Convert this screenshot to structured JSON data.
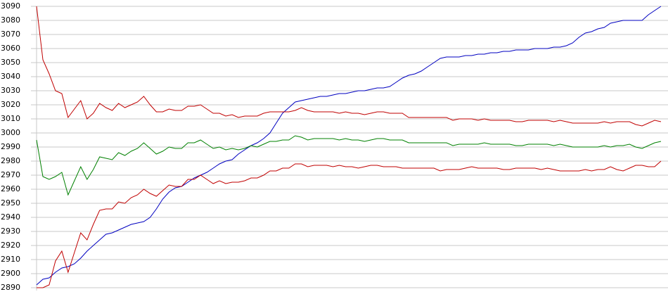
{
  "chart_data": {
    "type": "line",
    "ylim": [
      2890,
      3090
    ],
    "yticks": [
      2890,
      2900,
      2910,
      2920,
      2930,
      2940,
      2950,
      2960,
      2970,
      2980,
      2990,
      3000,
      3010,
      3020,
      3030,
      3040,
      3050,
      3060,
      3070,
      3080,
      3090
    ],
    "grid": true,
    "series": [
      {
        "color": "#0000c0",
        "values": [
          2892,
          2896,
          2897,
          2901,
          2904,
          2905,
          2907,
          2911,
          2916,
          2920,
          2924,
          2928,
          2929,
          2931,
          2933,
          2935,
          2936,
          2937,
          2940,
          2946,
          2953,
          2958,
          2961,
          2962,
          2965,
          2968,
          2970,
          2972,
          2975,
          2978,
          2980,
          2981,
          2985,
          2988,
          2991,
          2993,
          2996,
          3000,
          3007,
          3014,
          3018,
          3022,
          3023,
          3024,
          3025,
          3026,
          3026,
          3027,
          3028,
          3028,
          3029,
          3030,
          3030,
          3031,
          3032,
          3032,
          3033,
          3036,
          3039,
          3041,
          3042,
          3044,
          3047,
          3050,
          3053,
          3054,
          3054,
          3054,
          3055,
          3055,
          3056,
          3056,
          3057,
          3057,
          3058,
          3058,
          3059,
          3059,
          3059,
          3060,
          3060,
          3060,
          3061,
          3061,
          3062,
          3064,
          3068,
          3071,
          3072,
          3074,
          3075,
          3078,
          3079,
          3080,
          3080,
          3080,
          3080,
          3084,
          3087,
          3090
        ]
      },
      {
        "color": "#c00000",
        "values": [
          3090,
          3052,
          3042,
          3030,
          3028,
          3011,
          3017,
          3023,
          3010,
          3014,
          3021,
          3018,
          3016,
          3021,
          3018,
          3020,
          3022,
          3026,
          3020,
          3015,
          3015,
          3017,
          3016,
          3016,
          3019,
          3019,
          3020,
          3017,
          3014,
          3014,
          3012,
          3013,
          3011,
          3012,
          3012,
          3012,
          3014,
          3015,
          3015,
          3015,
          3015,
          3016,
          3018,
          3016,
          3015,
          3015,
          3015,
          3015,
          3014,
          3015,
          3014,
          3014,
          3013,
          3014,
          3015,
          3015,
          3014,
          3014,
          3014,
          3011,
          3011,
          3011,
          3011,
          3011,
          3011,
          3011,
          3009,
          3010,
          3010,
          3010,
          3009,
          3010,
          3009,
          3009,
          3009,
          3009,
          3008,
          3008,
          3009,
          3009,
          3009,
          3009,
          3008,
          3009,
          3008,
          3007,
          3007,
          3007,
          3007,
          3007,
          3008,
          3007,
          3008,
          3008,
          3008,
          3006,
          3005,
          3007,
          3009,
          3008
        ]
      },
      {
        "color": "#008000",
        "values": [
          2995,
          2969,
          2967,
          2969,
          2972,
          2956,
          2966,
          2976,
          2967,
          2974,
          2983,
          2982,
          2981,
          2986,
          2984,
          2987,
          2989,
          2993,
          2989,
          2985,
          2987,
          2990,
          2989,
          2989,
          2993,
          2993,
          2995,
          2992,
          2989,
          2990,
          2988,
          2989,
          2988,
          2989,
          2991,
          2990,
          2992,
          2994,
          2994,
          2995,
          2995,
          2998,
          2997,
          2995,
          2996,
          2996,
          2996,
          2996,
          2995,
          2996,
          2995,
          2995,
          2994,
          2995,
          2996,
          2996,
          2995,
          2995,
          2995,
          2993,
          2993,
          2993,
          2993,
          2993,
          2993,
          2993,
          2991,
          2992,
          2992,
          2992,
          2992,
          2993,
          2992,
          2992,
          2992,
          2992,
          2991,
          2991,
          2992,
          2992,
          2992,
          2992,
          2991,
          2992,
          2991,
          2990,
          2990,
          2990,
          2990,
          2990,
          2991,
          2990,
          2991,
          2991,
          2992,
          2990,
          2989,
          2991,
          2993,
          2994
        ]
      },
      {
        "color": "#c00000",
        "values": [
          2890,
          2890,
          2892,
          2909,
          2916,
          2901,
          2915,
          2929,
          2924,
          2935,
          2945,
          2946,
          2946,
          2951,
          2950,
          2954,
          2956,
          2960,
          2957,
          2955,
          2959,
          2963,
          2962,
          2962,
          2967,
          2967,
          2970,
          2967,
          2964,
          2966,
          2964,
          2965,
          2965,
          2966,
          2968,
          2968,
          2970,
          2973,
          2973,
          2975,
          2975,
          2978,
          2978,
          2976,
          2977,
          2977,
          2977,
          2976,
          2977,
          2976,
          2976,
          2975,
          2976,
          2977,
          2977,
          2976,
          2976,
          2976,
          2975,
          2975,
          2975,
          2975,
          2975,
          2975,
          2973,
          2974,
          2974,
          2974,
          2975,
          2976,
          2975,
          2975,
          2975,
          2975,
          2974,
          2974,
          2975,
          2975,
          2975,
          2975,
          2974,
          2975,
          2974,
          2973,
          2973,
          2973,
          2973,
          2974,
          2973,
          2974,
          2974,
          2976,
          2974,
          2973,
          2975,
          2977,
          2977,
          2976,
          2976,
          2980
        ]
      }
    ]
  }
}
